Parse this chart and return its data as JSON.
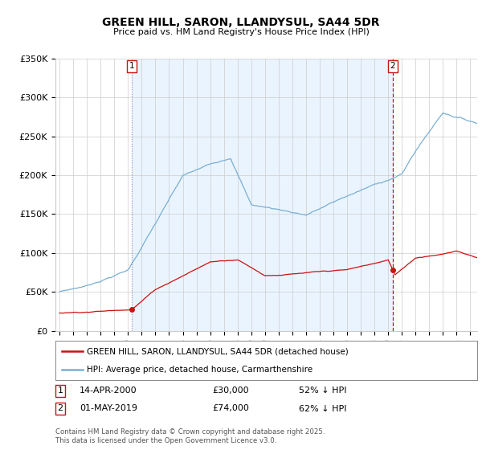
{
  "title": "GREEN HILL, SARON, LLANDYSUL, SA44 5DR",
  "subtitle": "Price paid vs. HM Land Registry's House Price Index (HPI)",
  "ylim": [
    0,
    350000
  ],
  "yticks": [
    0,
    50000,
    100000,
    150000,
    200000,
    250000,
    300000,
    350000
  ],
  "ytick_labels": [
    "£0",
    "£50K",
    "£100K",
    "£150K",
    "£200K",
    "£250K",
    "£300K",
    "£350K"
  ],
  "hpi_color": "#7aafd4",
  "price_color": "#cc1111",
  "vline1_color": "#aaaacc",
  "vline2_color": "#cc1111",
  "shade_color": "#ddeeff",
  "background_color": "#ffffff",
  "grid_color": "#cccccc",
  "transaction1": {
    "label": "1",
    "date": "14-APR-2000",
    "price": "£30,000",
    "hpi": "52% ↓ HPI",
    "x": 2000.28
  },
  "transaction2": {
    "label": "2",
    "date": "01-MAY-2019",
    "price": "£74,000",
    "hpi": "62% ↓ HPI",
    "x": 2019.33
  },
  "legend_line1": "GREEN HILL, SARON, LLANDYSUL, SA44 5DR (detached house)",
  "legend_line2": "HPI: Average price, detached house, Carmarthenshire",
  "footer": "Contains HM Land Registry data © Crown copyright and database right 2025.\nThis data is licensed under the Open Government Licence v3.0.",
  "xmin": 1994.7,
  "xmax": 2025.5
}
